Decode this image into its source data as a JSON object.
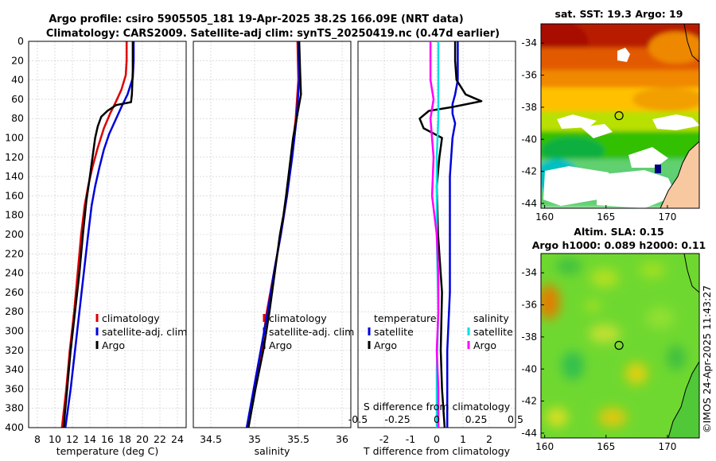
{
  "header": {
    "title_line1": "Argo profile: csiro 5905505_181 19-Apr-2025 38.2S 166.09E (NRT data)",
    "title_line2": "Climatology: CARS2009. Satellite-adj clim: synTS_20250419.nc (0.47d earlier)"
  },
  "colors": {
    "climatology": "#dd0000",
    "satellite": "#0000dd",
    "argo": "#000000",
    "sal_sat": "#00e0e0",
    "sal_diff": "#ff00ff"
  },
  "chart_data": [
    {
      "type": "line",
      "name": "temperature-profile",
      "xlabel": "temperature (deg C)",
      "ylabel": "",
      "xlim": [
        7,
        25
      ],
      "ylim": [
        400,
        0
      ],
      "xticks": [
        8,
        10,
        12,
        14,
        16,
        18,
        20,
        22,
        24
      ],
      "yticks": [
        0,
        20,
        40,
        60,
        80,
        100,
        120,
        140,
        160,
        180,
        200,
        220,
        240,
        260,
        280,
        300,
        320,
        340,
        360,
        380,
        400
      ],
      "grid": true,
      "legend": [
        "climatology",
        "satellite-adj. clim",
        "Argo"
      ],
      "legend_position": "lower-right",
      "series": [
        {
          "name": "climatology",
          "points": [
            [
              18.2,
              0
            ],
            [
              18.2,
              20
            ],
            [
              18.1,
              35
            ],
            [
              17.6,
              50
            ],
            [
              17.0,
              62
            ],
            [
              16.3,
              75
            ],
            [
              15.6,
              90
            ],
            [
              14.9,
              110
            ],
            [
              14.3,
              130
            ],
            [
              13.8,
              150
            ],
            [
              13.4,
              170
            ],
            [
              13.0,
              200
            ],
            [
              12.6,
              240
            ],
            [
              12.2,
              280
            ],
            [
              11.7,
              320
            ],
            [
              11.3,
              360
            ],
            [
              10.8,
              400
            ]
          ]
        },
        {
          "name": "satellite-adj. clim",
          "points": [
            [
              19.0,
              0
            ],
            [
              19.0,
              20
            ],
            [
              18.9,
              38
            ],
            [
              18.3,
              55
            ],
            [
              17.6,
              68
            ],
            [
              16.9,
              82
            ],
            [
              16.2,
              96
            ],
            [
              15.6,
              112
            ],
            [
              15.1,
              130
            ],
            [
              14.6,
              150
            ],
            [
              14.2,
              170
            ],
            [
              13.8,
              200
            ],
            [
              13.3,
              240
            ],
            [
              12.8,
              280
            ],
            [
              12.3,
              320
            ],
            [
              11.8,
              360
            ],
            [
              11.2,
              400
            ]
          ]
        },
        {
          "name": "Argo",
          "points": [
            [
              18.9,
              0
            ],
            [
              18.9,
              30
            ],
            [
              18.8,
              55
            ],
            [
              18.7,
              63
            ],
            [
              17.0,
              66
            ],
            [
              16.0,
              72
            ],
            [
              15.3,
              78
            ],
            [
              14.9,
              88
            ],
            [
              14.6,
              100
            ],
            [
              14.3,
              120
            ],
            [
              14.0,
              140
            ],
            [
              13.6,
              165
            ],
            [
              13.2,
              200
            ],
            [
              12.8,
              240
            ],
            [
              12.3,
              280
            ],
            [
              11.8,
              320
            ],
            [
              11.4,
              360
            ],
            [
              11.0,
              400
            ]
          ]
        }
      ]
    },
    {
      "type": "line",
      "name": "salinity-profile",
      "xlabel": "salinity",
      "xlim": [
        34.3,
        36.1
      ],
      "ylim": [
        400,
        0
      ],
      "xticks": [
        34.5,
        35,
        35.5,
        36
      ],
      "grid": true,
      "legend": [
        "climatology",
        "satellite-adj. clim",
        "Argo"
      ],
      "legend_position": "lower-right",
      "series": [
        {
          "name": "climatology",
          "points": [
            [
              35.49,
              0
            ],
            [
              35.5,
              40
            ],
            [
              35.47,
              80
            ],
            [
              35.42,
              120
            ],
            [
              35.37,
              160
            ],
            [
              35.3,
              200
            ],
            [
              35.22,
              240
            ],
            [
              35.14,
              280
            ],
            [
              35.08,
              320
            ],
            [
              35.0,
              360
            ],
            [
              34.92,
              400
            ]
          ]
        },
        {
          "name": "satellite-adj. clim",
          "points": [
            [
              35.5,
              0
            ],
            [
              35.51,
              40
            ],
            [
              35.48,
              80
            ],
            [
              35.43,
              120
            ],
            [
              35.37,
              160
            ],
            [
              35.3,
              200
            ],
            [
              35.22,
              240
            ],
            [
              35.15,
              280
            ],
            [
              35.07,
              320
            ],
            [
              34.99,
              360
            ],
            [
              34.91,
              400
            ]
          ]
        },
        {
          "name": "Argo",
          "points": [
            [
              35.51,
              0
            ],
            [
              35.52,
              30
            ],
            [
              35.53,
              55
            ],
            [
              35.49,
              75
            ],
            [
              35.44,
              100
            ],
            [
              35.4,
              130
            ],
            [
              35.36,
              160
            ],
            [
              35.33,
              180
            ],
            [
              35.29,
              200
            ],
            [
              35.23,
              240
            ],
            [
              35.17,
              280
            ],
            [
              35.1,
              320
            ],
            [
              35.01,
              360
            ],
            [
              34.93,
              400
            ]
          ]
        }
      ]
    },
    {
      "type": "line",
      "name": "difference-profile",
      "xlabel": "T difference from climatology",
      "xlabel_top": "S difference from climatology",
      "xlim": [
        -3,
        3
      ],
      "ylim": [
        400,
        0
      ],
      "xticks": [
        -2,
        -1,
        0,
        1,
        2
      ],
      "xticks_top": [
        "-0.5",
        "-0.25",
        "0",
        "0.25",
        "0.5"
      ],
      "grid": true,
      "legend_temperature_title": "temperature",
      "legend_salinity_title": "salinity",
      "legend_temperature": [
        "satellite",
        "Argo"
      ],
      "legend_salinity": [
        "satellite",
        "Argo"
      ],
      "series": [
        {
          "name": "T satellite",
          "points": [
            [
              0.8,
              0
            ],
            [
              0.8,
              20
            ],
            [
              0.8,
              40
            ],
            [
              0.7,
              55
            ],
            [
              0.6,
              65
            ],
            [
              0.6,
              75
            ],
            [
              0.7,
              85
            ],
            [
              0.6,
              100
            ],
            [
              0.5,
              140
            ],
            [
              0.5,
              200
            ],
            [
              0.5,
              260
            ],
            [
              0.4,
              320
            ],
            [
              0.4,
              360
            ],
            [
              0.4,
              400
            ]
          ]
        },
        {
          "name": "T Argo",
          "points": [
            [
              0.7,
              0
            ],
            [
              0.7,
              20
            ],
            [
              0.75,
              40
            ],
            [
              1.1,
              55
            ],
            [
              1.7,
              62
            ],
            [
              0.6,
              68
            ],
            [
              -0.3,
              72
            ],
            [
              -0.65,
              80
            ],
            [
              -0.5,
              90
            ],
            [
              0.2,
              100
            ],
            [
              0.1,
              120
            ],
            [
              0.0,
              150
            ],
            [
              0.05,
              200
            ],
            [
              0.2,
              260
            ],
            [
              0.15,
              320
            ],
            [
              0.2,
              360
            ],
            [
              0.3,
              400
            ]
          ]
        },
        {
          "name": "S satellite",
          "points": [
            [
              0.01,
              0
            ],
            [
              0.01,
              40
            ],
            [
              0.01,
              80
            ],
            [
              0.0,
              120
            ],
            [
              0.0,
              200
            ],
            [
              0.01,
              280
            ],
            [
              0.0,
              340
            ],
            [
              0.0,
              400
            ]
          ]
        },
        {
          "name": "S Argo",
          "points": [
            [
              -0.04,
              0
            ],
            [
              -0.04,
              40
            ],
            [
              -0.02,
              60
            ],
            [
              -0.04,
              80
            ],
            [
              -0.02,
              120
            ],
            [
              -0.03,
              160
            ],
            [
              0.0,
              200
            ],
            [
              0.01,
              240
            ],
            [
              0.01,
              280
            ],
            [
              0.0,
              320
            ],
            [
              0.01,
              360
            ],
            [
              0.01,
              400
            ]
          ]
        }
      ]
    },
    {
      "type": "heatmap",
      "name": "sst-map",
      "title": "sat. SST: 19.3 Argo: 19",
      "xticks": [
        160,
        165,
        170
      ],
      "yticks": [
        -34,
        -36,
        -38,
        -40,
        -42,
        -44
      ],
      "xlim": [
        159.7,
        172.6
      ],
      "ylim": [
        -44.3,
        -32.8
      ],
      "argo_position": [
        166.09,
        -38.2
      ]
    },
    {
      "type": "heatmap",
      "name": "sla-map",
      "title_line1": "Altim. SLA: 0.15",
      "title_line2": "Argo h1000: 0.089 h2000: 0.11",
      "xticks": [
        160,
        165,
        170
      ],
      "yticks": [
        -34,
        -36,
        -38,
        -40,
        -42,
        -44
      ],
      "xlim": [
        159.7,
        172.6
      ],
      "ylim": [
        -44.3,
        -32.8
      ],
      "argo_position": [
        166.09,
        -38.2
      ]
    }
  ],
  "footer": {
    "timestamp": "©IMOS 24-Apr-2025 11:43:27"
  }
}
